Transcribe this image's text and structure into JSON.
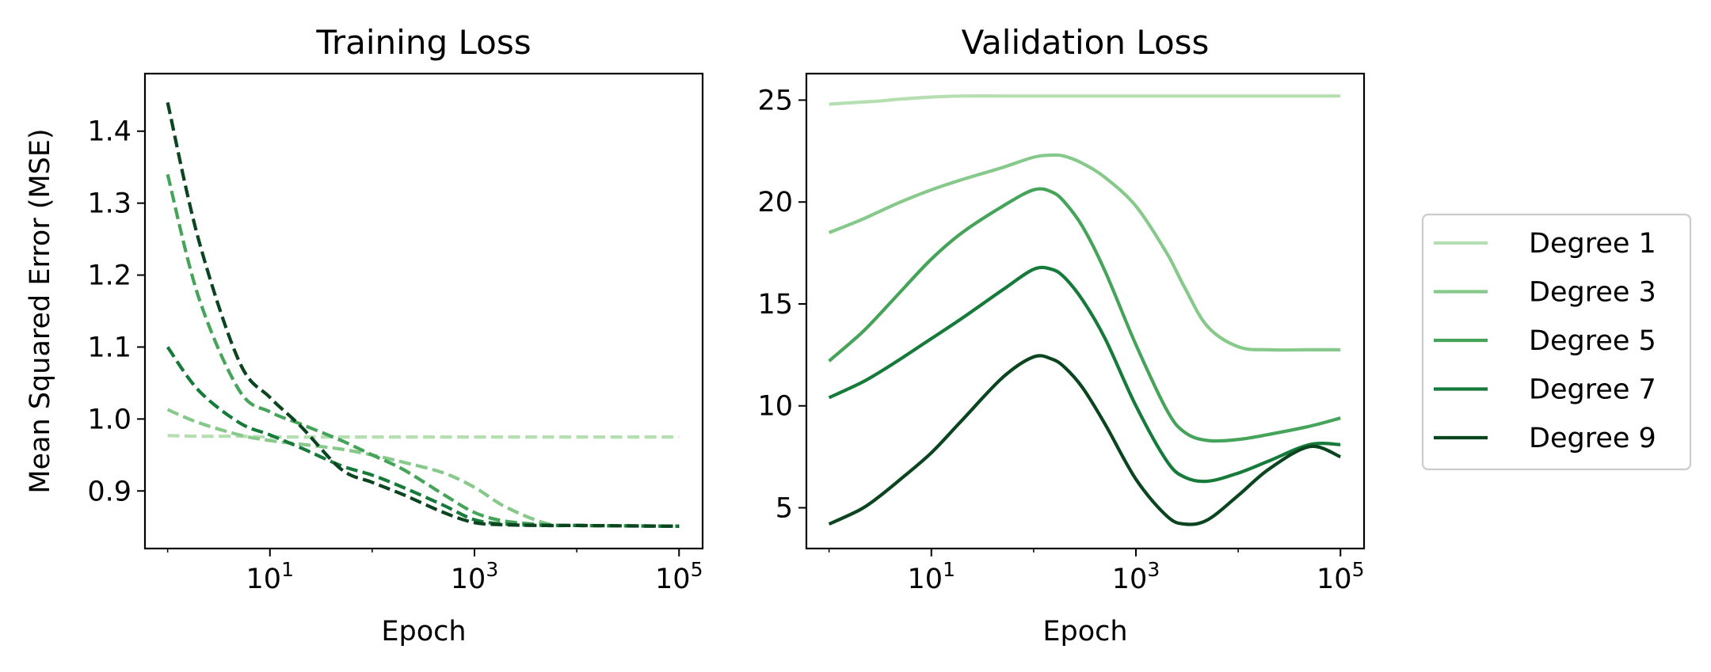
{
  "legend": {
    "placement": "outside right",
    "entries": [
      "Degree 1",
      "Degree 3",
      "Degree 5",
      "Degree 7",
      "Degree 9"
    ]
  },
  "colors": {
    "Degree 1": "#b5dfb0",
    "Degree 3": "#86c98a",
    "Degree 5": "#46a45a",
    "Degree 7": "#167a3a",
    "Degree 9": "#0a4520"
  },
  "chart_data": [
    {
      "type": "line",
      "title": "Training Loss",
      "xlabel": "Epoch",
      "ylabel": "Mean Squared Error (MSE)",
      "x_scale": "log",
      "xlim": [
        0.6,
        170000
      ],
      "ylim": [
        0.82,
        1.48
      ],
      "line_style": "dashed",
      "grid": false,
      "xticks": [
        10,
        1000,
        100000
      ],
      "xtick_labels": [
        {
          "base": "10",
          "exp": "1"
        },
        {
          "base": "10",
          "exp": "3"
        },
        {
          "base": "10",
          "exp": "5"
        }
      ],
      "yticks": [
        0.9,
        1.0,
        1.1,
        1.2,
        1.3,
        1.4
      ],
      "ytick_labels": [
        "0.9",
        "1.0",
        "1.1",
        "1.2",
        "1.3",
        "1.4"
      ],
      "x": [
        1,
        2,
        5,
        10,
        20,
        50,
        100,
        200,
        500,
        1000,
        2000,
        5000,
        10000,
        100000
      ],
      "series": [
        {
          "name": "Degree 1",
          "values": [
            0.977,
            0.976,
            0.976,
            0.975,
            0.975,
            0.975,
            0.975,
            0.975,
            0.975,
            0.975,
            0.975,
            0.975,
            0.975,
            0.975
          ]
        },
        {
          "name": "Degree 3",
          "values": [
            1.013,
            0.995,
            0.978,
            0.97,
            0.965,
            0.958,
            0.95,
            0.94,
            0.925,
            0.905,
            0.878,
            0.855,
            0.852,
            0.851
          ]
        },
        {
          "name": "Degree 5",
          "values": [
            1.34,
            1.17,
            1.04,
            1.01,
            0.993,
            0.97,
            0.95,
            0.93,
            0.895,
            0.87,
            0.858,
            0.853,
            0.852,
            0.851
          ]
        },
        {
          "name": "Degree 7",
          "values": [
            1.1,
            1.04,
            0.995,
            0.978,
            0.96,
            0.935,
            0.922,
            0.905,
            0.88,
            0.86,
            0.854,
            0.852,
            0.852,
            0.851
          ]
        },
        {
          "name": "Degree 9",
          "values": [
            1.44,
            1.25,
            1.08,
            1.03,
            0.99,
            0.93,
            0.912,
            0.895,
            0.87,
            0.856,
            0.853,
            0.852,
            0.852,
            0.851
          ]
        }
      ]
    },
    {
      "type": "line",
      "title": "Validation Loss",
      "xlabel": "Epoch",
      "ylabel": "",
      "x_scale": "log",
      "xlim": [
        0.6,
        170000
      ],
      "ylim": [
        3.0,
        26.3
      ],
      "line_style": "solid",
      "grid": false,
      "xticks": [
        10,
        1000,
        100000
      ],
      "xtick_labels": [
        {
          "base": "10",
          "exp": "1"
        },
        {
          "base": "10",
          "exp": "3"
        },
        {
          "base": "10",
          "exp": "5"
        }
      ],
      "yticks": [
        5,
        10,
        15,
        20,
        25
      ],
      "ytick_labels": [
        "5",
        "10",
        "15",
        "20",
        "25"
      ],
      "x": [
        1,
        2,
        3,
        5,
        10,
        20,
        50,
        100,
        150,
        200,
        300,
        500,
        1000,
        2000,
        3000,
        5000,
        10000,
        20000,
        50000,
        100000
      ],
      "series": [
        {
          "name": "Degree 1",
          "values": [
            24.8,
            24.9,
            24.95,
            25.05,
            25.15,
            25.2,
            25.2,
            25.2,
            25.2,
            25.2,
            25.2,
            25.2,
            25.2,
            25.2,
            25.2,
            25.2,
            25.2,
            25.2,
            25.2,
            25.2
          ]
        },
        {
          "name": "Degree 3",
          "values": [
            18.5,
            19.1,
            19.5,
            20.0,
            20.6,
            21.1,
            21.7,
            22.2,
            22.3,
            22.25,
            21.9,
            21.2,
            19.8,
            17.5,
            15.8,
            13.9,
            12.9,
            12.75,
            12.75,
            12.75
          ]
        },
        {
          "name": "Degree 5",
          "values": [
            12.2,
            13.5,
            14.4,
            15.6,
            17.2,
            18.5,
            19.8,
            20.6,
            20.5,
            20.0,
            18.8,
            16.6,
            13.0,
            9.8,
            8.7,
            8.3,
            8.35,
            8.6,
            9.0,
            9.4
          ]
        },
        {
          "name": "Degree 7",
          "values": [
            10.4,
            11.1,
            11.6,
            12.3,
            13.3,
            14.3,
            15.7,
            16.7,
            16.7,
            16.3,
            15.2,
            13.3,
            10.0,
            7.3,
            6.5,
            6.3,
            6.7,
            7.3,
            8.1,
            8.1
          ]
        },
        {
          "name": "Degree 9",
          "values": [
            4.2,
            4.9,
            5.5,
            6.4,
            7.7,
            9.3,
            11.4,
            12.4,
            12.3,
            11.9,
            10.9,
            9.1,
            6.4,
            4.6,
            4.2,
            4.4,
            5.6,
            6.9,
            8.0,
            7.5
          ]
        }
      ]
    }
  ]
}
